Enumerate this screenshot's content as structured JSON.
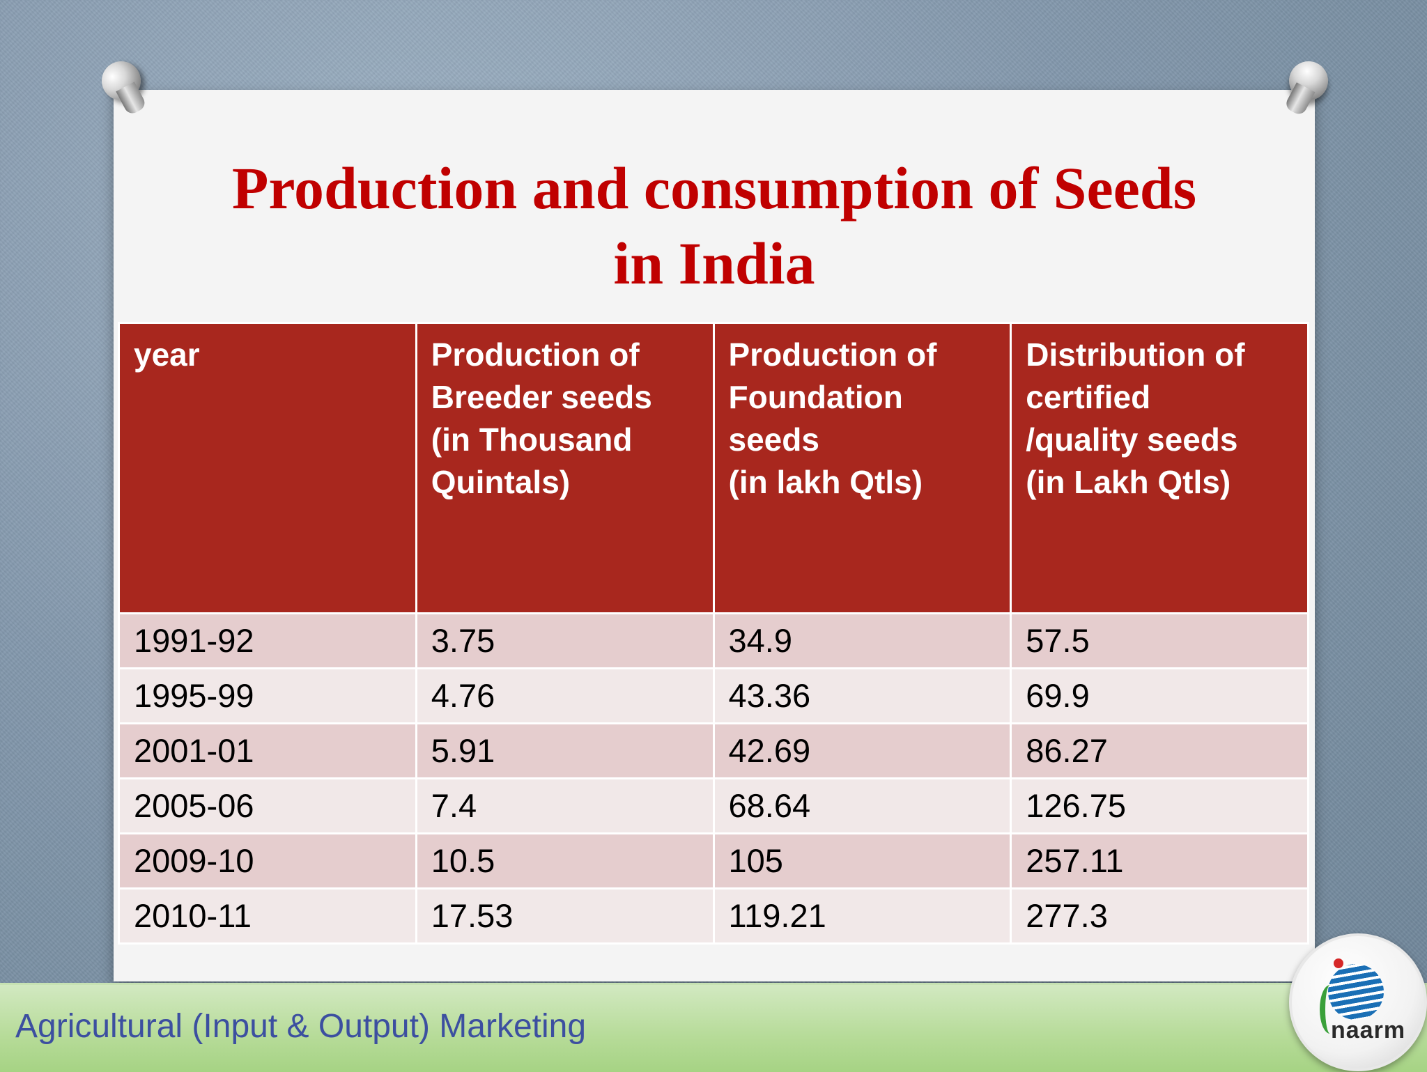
{
  "slide": {
    "title_line1": "Production and consumption of Seeds",
    "title_line2": "in India"
  },
  "table": {
    "headers": [
      [
        "year"
      ],
      [
        "Production of",
        "Breeder seeds",
        "(in Thousand",
        "Quintals)"
      ],
      [
        "Production of",
        "Foundation",
        "seeds",
        "(in lakh Qtls)"
      ],
      [
        "Distribution of",
        "certified",
        "/quality seeds",
        "(in Lakh Qtls)"
      ]
    ],
    "rows": [
      [
        "1991-92",
        "3.75",
        "34.9",
        "57.5"
      ],
      [
        "1995-99",
        "4.76",
        "43.36",
        "69.9"
      ],
      [
        "2001-01",
        "5.91",
        "42.69",
        "86.27"
      ],
      [
        "2005-06",
        "7.4",
        "68.64",
        "126.75"
      ],
      [
        "2009-10",
        "10.5",
        "105",
        "257.11"
      ],
      [
        "2010-11",
        "17.53",
        "119.21",
        "277.3"
      ]
    ]
  },
  "footer": {
    "text": "Agricultural (Input & Output) Marketing",
    "logo_text": "naarm"
  },
  "colors": {
    "title": "#c00000",
    "header_bg": "#a8271e",
    "row_odd": "#e5cdce",
    "row_even": "#f1e8e8",
    "footer_text": "#3c4fa0"
  }
}
